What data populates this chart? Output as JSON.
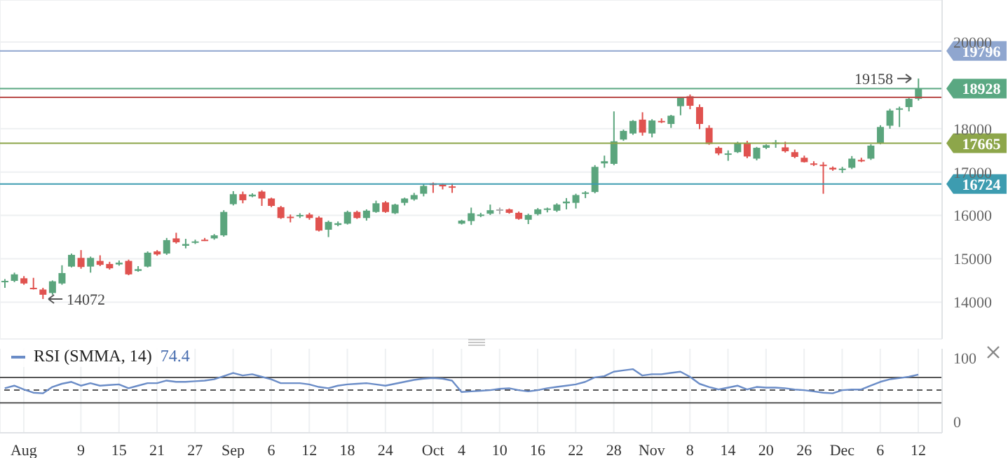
{
  "chart_data": [
    {
      "type": "candlestick",
      "tick_labels": "y",
      "categories": [
        null,
        null,
        "Aug",
        null,
        null,
        null,
        null,
        null,
        "9",
        null,
        null,
        null,
        "15",
        null,
        null,
        null,
        "21",
        null,
        null,
        null,
        "27",
        null,
        null,
        null,
        "Sep",
        null,
        null,
        null,
        "6",
        null,
        null,
        null,
        "12",
        null,
        null,
        null,
        "18",
        null,
        null,
        null,
        "24",
        null,
        null,
        null,
        null,
        "Oct",
        null,
        null,
        "4",
        null,
        null,
        null,
        "10",
        null,
        null,
        null,
        "16",
        null,
        null,
        null,
        "22",
        null,
        null,
        null,
        "28",
        null,
        null,
        null,
        "Nov",
        null,
        null,
        null,
        "8",
        null,
        null,
        null,
        "14",
        null,
        null,
        null,
        "20",
        null,
        null,
        null,
        "26",
        null,
        null,
        null,
        "Dec",
        null,
        null,
        null,
        "6",
        null,
        null,
        null,
        "12"
      ],
      "ohlc": [
        [
          14460,
          14530,
          14330,
          14490
        ],
        [
          14490,
          14680,
          14460,
          14640
        ],
        [
          14550,
          14600,
          14400,
          14430
        ],
        [
          14330,
          14560,
          14290,
          14320
        ],
        [
          14290,
          14330,
          14072,
          14170
        ],
        [
          14210,
          14500,
          14170,
          14480
        ],
        [
          14430,
          14850,
          14400,
          14670
        ],
        [
          14820,
          15120,
          14800,
          15090
        ],
        [
          15020,
          15200,
          14770,
          14810
        ],
        [
          14820,
          15050,
          14680,
          15020
        ],
        [
          14950,
          15080,
          14830,
          14860
        ],
        [
          14880,
          14930,
          14750,
          14780
        ],
        [
          14870,
          14960,
          14840,
          14910
        ],
        [
          14950,
          14980,
          14620,
          14640
        ],
        [
          14720,
          14830,
          14700,
          14760
        ],
        [
          14820,
          15170,
          14800,
          15140
        ],
        [
          15170,
          15200,
          15070,
          15100
        ],
        [
          15120,
          15480,
          15090,
          15430
        ],
        [
          15470,
          15600,
          15350,
          15380
        ],
        [
          15300,
          15460,
          15240,
          15340
        ],
        [
          15370,
          15440,
          15340,
          15400
        ],
        [
          15440,
          15480,
          15410,
          15420
        ],
        [
          15470,
          15570,
          15440,
          15540
        ],
        [
          15540,
          16120,
          15510,
          16080
        ],
        [
          16260,
          16560,
          16230,
          16490
        ],
        [
          16490,
          16550,
          16280,
          16350
        ],
        [
          16440,
          16510,
          16420,
          16480
        ],
        [
          16550,
          16580,
          16220,
          16390
        ],
        [
          16390,
          16410,
          16190,
          16220
        ],
        [
          16190,
          16220,
          15920,
          15940
        ],
        [
          15970,
          16020,
          15840,
          15960
        ],
        [
          15980,
          16050,
          15940,
          16010
        ],
        [
          16020,
          16060,
          15900,
          15940
        ],
        [
          15950,
          15980,
          15630,
          15650
        ],
        [
          15670,
          15880,
          15500,
          15850
        ],
        [
          15780,
          15860,
          15750,
          15820
        ],
        [
          15810,
          16110,
          15790,
          16080
        ],
        [
          16080,
          16110,
          15920,
          15940
        ],
        [
          15940,
          16140,
          15880,
          16110
        ],
        [
          16080,
          16340,
          16060,
          16280
        ],
        [
          16300,
          16330,
          16060,
          16080
        ],
        [
          16050,
          16270,
          16030,
          16250
        ],
        [
          16290,
          16410,
          16230,
          16390
        ],
        [
          16370,
          16520,
          16340,
          16470
        ],
        [
          16500,
          16720,
          16440,
          16680
        ],
        [
          16740,
          16760,
          16520,
          16700
        ],
        [
          16710,
          16740,
          16600,
          16670
        ],
        [
          16670,
          16740,
          16520,
          16660
        ],
        [
          15810,
          15900,
          15790,
          15880
        ],
        [
          15870,
          16180,
          15780,
          16050
        ],
        [
          15990,
          16060,
          15960,
          16020
        ],
        [
          16040,
          16250,
          16010,
          16120
        ],
        [
          16120,
          16180,
          16030,
          16140
        ],
        [
          16140,
          16160,
          16040,
          16060
        ],
        [
          16060,
          16090,
          15900,
          15920
        ],
        [
          15900,
          16040,
          15800,
          16010
        ],
        [
          16030,
          16170,
          16000,
          16140
        ],
        [
          16140,
          16180,
          16070,
          16160
        ],
        [
          16110,
          16280,
          16080,
          16250
        ],
        [
          16280,
          16400,
          16140,
          16320
        ],
        [
          16290,
          16500,
          16160,
          16470
        ],
        [
          16510,
          16560,
          16400,
          16530
        ],
        [
          16540,
          17160,
          16510,
          17120
        ],
        [
          17200,
          17380,
          17100,
          17250
        ],
        [
          17190,
          18400,
          17160,
          17710
        ],
        [
          17750,
          17980,
          17720,
          17950
        ],
        [
          17890,
          18200,
          17860,
          18180
        ],
        [
          18210,
          18380,
          17840,
          17910
        ],
        [
          17890,
          18220,
          17800,
          18190
        ],
        [
          18180,
          18240,
          18130,
          18150
        ],
        [
          18110,
          18320,
          18020,
          18300
        ],
        [
          18520,
          18740,
          18310,
          18710
        ],
        [
          18750,
          18790,
          18450,
          18530
        ],
        [
          18500,
          18560,
          17990,
          18110
        ],
        [
          18020,
          18080,
          17630,
          17650
        ],
        [
          17560,
          17590,
          17390,
          17430
        ],
        [
          17410,
          17500,
          17260,
          17430
        ],
        [
          17460,
          17700,
          17440,
          17670
        ],
        [
          17670,
          17720,
          17320,
          17360
        ],
        [
          17310,
          17580,
          17270,
          17560
        ],
        [
          17560,
          17640,
          17530,
          17620
        ],
        [
          17660,
          17740,
          17560,
          17680
        ],
        [
          17570,
          17700,
          17450,
          17480
        ],
        [
          17460,
          17520,
          17320,
          17350
        ],
        [
          17330,
          17380,
          17220,
          17230
        ],
        [
          17200,
          17250,
          17140,
          17180
        ],
        [
          17170,
          17230,
          16500,
          17160
        ],
        [
          17100,
          17130,
          17030,
          17060
        ],
        [
          17050,
          17120,
          16980,
          17080
        ],
        [
          17100,
          17370,
          17070,
          17310
        ],
        [
          17280,
          17330,
          17230,
          17250
        ],
        [
          17310,
          17640,
          17280,
          17610
        ],
        [
          17660,
          18080,
          17640,
          18040
        ],
        [
          18070,
          18460,
          18000,
          18420
        ],
        [
          18440,
          18510,
          18040,
          18470
        ],
        [
          18500,
          18740,
          18400,
          18690
        ],
        [
          18690,
          19158,
          18650,
          18928
        ]
      ],
      "colors": [
        "#5ba57d",
        "#5ba57d",
        "#e0524f",
        "#e0524f",
        "#e0524f",
        "#5ba57d",
        "#5ba57d",
        "#5ba57d",
        "#e0524f",
        "#5ba57d",
        "#e0524f",
        "#e0524f",
        "#5ba57d",
        "#e0524f",
        "#5ba57d",
        "#5ba57d",
        "#e0524f",
        "#5ba57d",
        "#e0524f",
        "#5ba57d",
        "#5ba57d",
        "#e0524f",
        "#5ba57d",
        "#5ba57d",
        "#5ba57d",
        "#e0524f",
        "#5ba57d",
        "#e0524f",
        "#e0524f",
        "#e0524f",
        "#e0524f",
        "#5ba57d",
        "#e0524f",
        "#e0524f",
        "#5ba57d",
        "#5ba57d",
        "#5ba57d",
        "#e0524f",
        "#5ba57d",
        "#5ba57d",
        "#e0524f",
        "#5ba57d",
        "#5ba57d",
        "#5ba57d",
        "#5ba57d",
        "#e0524f",
        "#e0524f",
        "#e0524f",
        "#5ba57d",
        "#5ba57d",
        "#5ba57d",
        "#5ba57d",
        "#a8a8a8",
        "#e0524f",
        "#e0524f",
        "#5ba57d",
        "#5ba57d",
        "#5ba57d",
        "#5ba57d",
        "#5ba57d",
        "#5ba57d",
        "#5ba57d",
        "#5ba57d",
        "#5ba57d",
        "#5ba57d",
        "#5ba57d",
        "#5ba57d",
        "#e0524f",
        "#5ba57d",
        "#e0524f",
        "#5ba57d",
        "#5ba57d",
        "#e0524f",
        "#e0524f",
        "#e0524f",
        "#e0524f",
        "#5ba57d",
        "#5ba57d",
        "#e0524f",
        "#5ba57d",
        "#5ba57d",
        "#5ba57d",
        "#e0524f",
        "#e0524f",
        "#e0524f",
        "#e0524f",
        "#e0524f",
        "#e0524f",
        "#5ba57d",
        "#5ba57d",
        "#e0524f",
        "#5ba57d",
        "#5ba57d",
        "#5ba57d",
        "#5ba57d",
        "#5ba57d",
        "#5ba57d"
      ],
      "ylim": [
        13150,
        20970
      ],
      "yticks": [
        14000,
        15000,
        16000,
        17000,
        18000,
        20000
      ],
      "grid": true,
      "ref_lines": [
        {
          "axis": "y",
          "value": 18723,
          "label": null,
          "color": "#b94a48"
        },
        {
          "axis": "y",
          "value": 19796,
          "label": "19796",
          "color": "#8fa6cf"
        },
        {
          "axis": "y",
          "value": 18928,
          "label": "18928",
          "color": "#5aa882"
        },
        {
          "axis": "y",
          "value": 17665,
          "label": "17665",
          "color": "#8da64a"
        },
        {
          "axis": "y",
          "value": 16724,
          "label": "16724",
          "color": "#3d9cb0"
        }
      ],
      "annotations": [
        "14072",
        "19158"
      ]
    },
    {
      "type": "line",
      "annotations": [
        "74.4"
      ],
      "series": [
        {
          "name": "RSI (SMMA, 14)",
          "color": "#6a8cc7",
          "values": [
            53,
            57,
            51,
            46,
            45,
            55,
            60,
            63,
            57,
            61,
            57,
            58,
            59,
            53,
            57,
            61,
            61,
            65,
            63,
            63,
            64,
            65,
            67,
            72,
            77,
            73,
            75,
            71,
            67,
            61,
            61,
            61,
            59,
            55,
            53,
            57,
            59,
            60,
            61,
            59,
            57,
            60,
            63,
            66,
            68,
            69,
            68,
            65,
            47,
            48,
            49,
            50,
            52,
            53,
            50,
            48,
            50,
            53,
            55,
            57,
            59,
            63,
            70,
            72,
            79,
            81,
            83,
            73,
            75,
            75,
            77,
            79,
            71,
            60,
            55,
            51,
            54,
            57,
            51,
            55,
            54,
            54,
            53,
            51,
            50,
            48,
            46,
            45,
            50,
            51,
            51,
            57,
            63,
            67,
            69,
            71,
            74.4
          ]
        }
      ],
      "ylim": [
        -17,
        115
      ],
      "yticks": [
        0,
        100
      ],
      "grid": "x",
      "legend": "top left",
      "ref_lines": [
        {
          "axis": "y",
          "value": 70,
          "color": "#555555",
          "line_style": "solid"
        },
        {
          "axis": "y",
          "value": 50,
          "color": "#555555",
          "line_style": "dashed"
        },
        {
          "axis": "y",
          "value": 30,
          "color": "#555555",
          "line_style": "solid"
        }
      ]
    }
  ]
}
